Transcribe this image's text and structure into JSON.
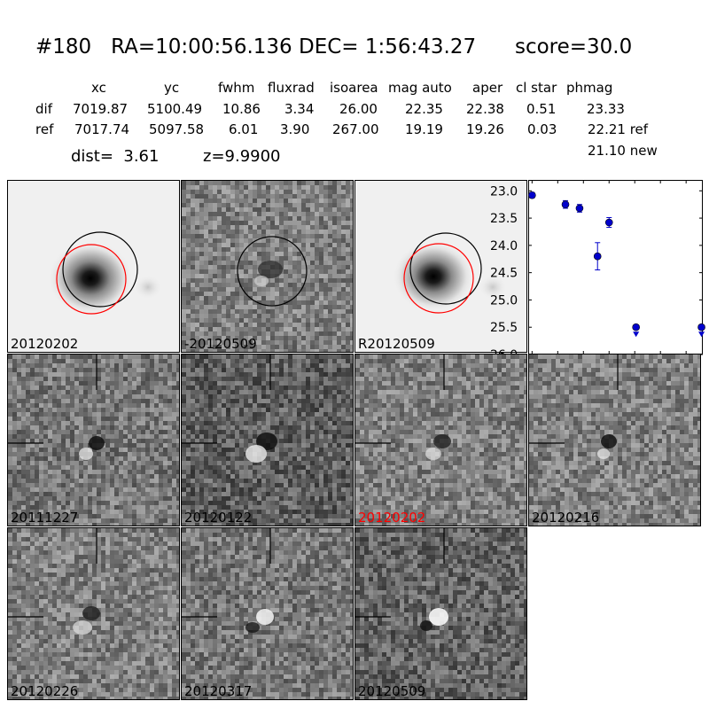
{
  "header": {
    "title": "#180   RA=10:00:56.136 DEC= 1:56:43.27      score=30.0"
  },
  "table": {
    "columns": [
      "xc",
      "yc",
      "fwhm",
      "fluxrad",
      "isoarea",
      "mag auto",
      "aper",
      "cl star",
      "phmag"
    ],
    "rows": [
      {
        "label": "dif",
        "values": [
          "7019.87",
          "5100.49",
          "10.86",
          "3.34",
          "26.00",
          "22.35",
          "22.38",
          "0.51",
          "23.33"
        ]
      },
      {
        "label": "ref",
        "values": [
          "7017.74",
          "5097.58",
          "6.01",
          "3.90",
          "267.00",
          "19.19",
          "19.26",
          "0.03",
          "22.21 ref"
        ]
      }
    ],
    "extra": "21.10 new"
  },
  "info": {
    "dist": "dist=  3.61",
    "z": "z=9.9900"
  },
  "panels": {
    "top": [
      {
        "label": "20120202",
        "type": "galaxy",
        "red": false
      },
      {
        "label": "-20120509",
        "type": "noise_dark",
        "red": false
      },
      {
        "label": "R20120509",
        "type": "galaxy",
        "red": false
      }
    ],
    "middle": [
      {
        "label": "20111227",
        "red": false
      },
      {
        "label": "20120122",
        "red": false
      },
      {
        "label": "20120202",
        "red": true
      },
      {
        "label": "20120216",
        "red": false
      }
    ],
    "bottom": [
      {
        "label": "20120226",
        "red": false
      },
      {
        "label": "20120317",
        "red": false
      },
      {
        "label": "20120509",
        "red": false
      }
    ]
  },
  "colors": {
    "marker": "#0000cc",
    "circle_red": "#ff0000",
    "circle_black": "#000000",
    "highlight_label": "#ff0000"
  },
  "chart_data": {
    "type": "scatter",
    "title": "",
    "xlabel": "",
    "ylabel": "",
    "xlim": [
      -3,
      133
    ],
    "ylim": [
      26.0,
      22.8
    ],
    "x_inverted": false,
    "y_inverted": true,
    "xticks": [
      "0",
      "20",
      "40",
      "60",
      "80",
      "100",
      "120"
    ],
    "yticks": [
      "23.0",
      "23.5",
      "24.0",
      "24.5",
      "25.0",
      "25.5",
      "26.0"
    ],
    "points": [
      {
        "x": 0,
        "y": 23.08,
        "err": 0.05,
        "upper_limit": false
      },
      {
        "x": 26,
        "y": 23.25,
        "err": 0.07,
        "upper_limit": false
      },
      {
        "x": 37,
        "y": 23.32,
        "err": 0.07,
        "upper_limit": false
      },
      {
        "x": 51,
        "y": 24.2,
        "err": 0.25,
        "upper_limit": false
      },
      {
        "x": 60,
        "y": 23.58,
        "err": 0.09,
        "upper_limit": false
      },
      {
        "x": 81,
        "y": 25.5,
        "err": 0,
        "upper_limit": true
      },
      {
        "x": 132,
        "y": 25.5,
        "err": 0,
        "upper_limit": true
      }
    ]
  }
}
